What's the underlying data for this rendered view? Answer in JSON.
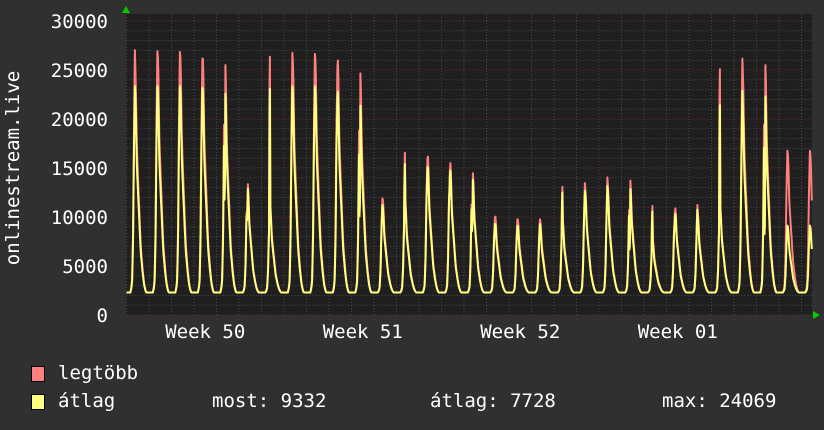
{
  "chart_data": {
    "type": "line",
    "ylabel": "onlinestream.live",
    "ylim": [
      0,
      30000
    ],
    "y_ticks": [
      "0",
      "5000",
      "10000",
      "15000",
      "20000",
      "25000",
      "30000"
    ],
    "x_ticks": [
      "Week 50",
      "Week 51",
      "Week 52",
      "Week 01"
    ],
    "grid": true,
    "trough": 2300,
    "series": [
      {
        "name": "legtöbb",
        "color": "#ff7f7f",
        "daily_peaks": [
          26300,
          27800,
          27700,
          27600,
          26900,
          14000,
          11700,
          27100,
          27500,
          27400,
          26000,
          12300,
          12200,
          17000,
          16300,
          15200,
          10500,
          10200,
          10000,
          10000,
          13400,
          13800,
          14400,
          8000,
          11400,
          10800,
          11500,
          25800,
          26900,
          17200
        ]
      },
      {
        "name": "átlag",
        "color": "#ffff80",
        "daily_peaks": [
          23300,
          24000,
          24000,
          24000,
          23800,
          13500,
          11000,
          23700,
          24000,
          24000,
          22500,
          11500,
          11500,
          15800,
          15500,
          14500,
          9700,
          9500,
          9300,
          9500,
          12800,
          13000,
          13500,
          7500,
          10800,
          10200,
          11000,
          22000,
          23500,
          9332
        ]
      }
    ]
  },
  "legend": {
    "max_label": "legtöbb",
    "avg_label": "átlag",
    "now": "most: 9332",
    "average": "átlag: 7728",
    "maximum": "max: 24069"
  }
}
